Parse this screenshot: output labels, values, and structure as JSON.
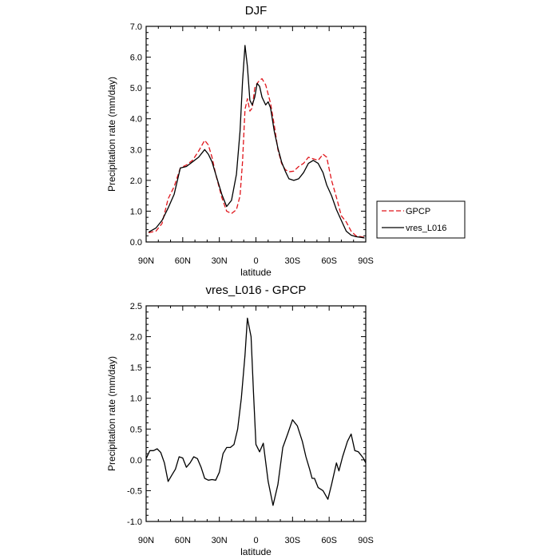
{
  "chart_data": [
    {
      "type": "line",
      "title": "DJF",
      "xlabel": "latitude",
      "ylabel": "Precipitation rate (mm/day)",
      "xlim": [
        -90,
        90
      ],
      "ylim": [
        0,
        7
      ],
      "x_ticks": [
        {
          "value": -90,
          "label": "90N"
        },
        {
          "value": -60,
          "label": "60N"
        },
        {
          "value": -30,
          "label": "30N"
        },
        {
          "value": 0,
          "label": "0"
        },
        {
          "value": 30,
          "label": "30S"
        },
        {
          "value": 60,
          "label": "60S"
        },
        {
          "value": 90,
          "label": "90S"
        }
      ],
      "y_ticks": [
        {
          "value": 0,
          "label": "0.0"
        },
        {
          "value": 1,
          "label": "1.0"
        },
        {
          "value": 2,
          "label": "2.0"
        },
        {
          "value": 3,
          "label": "3.0"
        },
        {
          "value": 4,
          "label": "4.0"
        },
        {
          "value": 5,
          "label": "5.0"
        },
        {
          "value": 6,
          "label": "6.0"
        },
        {
          "value": 7,
          "label": "7.0"
        }
      ],
      "legend": {
        "placement": "right-outside"
      },
      "series": [
        {
          "name": "GPCP",
          "color": "#e0151b",
          "dash": true,
          "x": [
            -88,
            -82,
            -77,
            -72,
            -67,
            -62,
            -57,
            -52,
            -47,
            -42,
            -39,
            -36,
            -33,
            -28,
            -24,
            -20,
            -16,
            -13,
            -11,
            -9,
            -7,
            -5,
            -3,
            -1,
            1,
            3,
            5,
            8,
            10,
            12,
            15,
            18,
            21,
            24,
            27,
            31,
            35,
            39,
            43,
            47,
            51,
            55,
            58,
            62,
            66,
            70,
            74,
            78,
            82,
            86,
            89
          ],
          "values": [
            0.3,
            0.35,
            0.6,
            1.4,
            1.8,
            2.4,
            2.5,
            2.65,
            2.95,
            3.3,
            3.15,
            2.75,
            2.2,
            1.45,
            1.0,
            0.92,
            1.05,
            1.5,
            2.6,
            4.3,
            4.65,
            4.25,
            4.35,
            5.0,
            5.15,
            5.25,
            5.3,
            5.1,
            4.8,
            4.5,
            3.8,
            3.0,
            2.55,
            2.35,
            2.28,
            2.3,
            2.45,
            2.55,
            2.75,
            2.7,
            2.65,
            2.85,
            2.75,
            2.0,
            1.45,
            0.85,
            0.65,
            0.35,
            0.2,
            0.17,
            0.15
          ]
        },
        {
          "name": "vres_L016",
          "color": "#000000",
          "dash": false,
          "x": [
            -88,
            -82,
            -77,
            -72,
            -67,
            -62,
            -57,
            -52,
            -47,
            -42,
            -39,
            -36,
            -33,
            -28,
            -24,
            -20,
            -16,
            -13,
            -11,
            -9,
            -7,
            -5,
            -3,
            -1,
            1,
            3,
            5,
            8,
            10,
            12,
            15,
            18,
            21,
            24,
            27,
            31,
            35,
            39,
            43,
            47,
            51,
            55,
            58,
            62,
            66,
            70,
            74,
            78,
            82,
            86,
            89
          ],
          "values": [
            0.32,
            0.45,
            0.7,
            1.1,
            1.55,
            2.4,
            2.45,
            2.6,
            2.75,
            3.0,
            2.85,
            2.6,
            2.2,
            1.55,
            1.15,
            1.35,
            2.2,
            3.6,
            5.2,
            6.38,
            5.7,
            4.6,
            4.45,
            4.7,
            5.15,
            5.05,
            4.7,
            4.45,
            4.55,
            4.35,
            3.6,
            3.05,
            2.6,
            2.3,
            2.05,
            2.0,
            2.05,
            2.25,
            2.55,
            2.65,
            2.55,
            2.25,
            1.85,
            1.5,
            1.05,
            0.7,
            0.35,
            0.22,
            0.17,
            0.15,
            0.13
          ]
        }
      ]
    },
    {
      "type": "line",
      "title": "vres_L016 - GPCP",
      "xlabel": "latitude",
      "ylabel": "Precipitation rate (mm/day)",
      "xlim": [
        -90,
        90
      ],
      "ylim": [
        -1,
        2.5
      ],
      "x_ticks": [
        {
          "value": -90,
          "label": "90N"
        },
        {
          "value": -60,
          "label": "60N"
        },
        {
          "value": -30,
          "label": "30N"
        },
        {
          "value": 0,
          "label": "0"
        },
        {
          "value": 30,
          "label": "30S"
        },
        {
          "value": 60,
          "label": "60S"
        },
        {
          "value": 90,
          "label": "90S"
        }
      ],
      "y_ticks": [
        {
          "value": -1,
          "label": "-1.0"
        },
        {
          "value": -0.5,
          "label": "-0.5"
        },
        {
          "value": 0,
          "label": "0.0"
        },
        {
          "value": 0.5,
          "label": "0.5"
        },
        {
          "value": 1,
          "label": "1.0"
        },
        {
          "value": 1.5,
          "label": "1.5"
        },
        {
          "value": 2,
          "label": "2.0"
        },
        {
          "value": 2.5,
          "label": "2.5"
        }
      ],
      "series": [
        {
          "name": "vres_L016 - GPCP",
          "color": "#000000",
          "dash": false,
          "x": [
            -90,
            -87,
            -84,
            -81,
            -78,
            -75,
            -72,
            -69,
            -66,
            -63,
            -60,
            -57,
            -54,
            -51,
            -48,
            -45,
            -42,
            -39,
            -36,
            -33,
            -30,
            -27,
            -24,
            -21,
            -18,
            -15,
            -12,
            -9,
            -7,
            -4,
            -2,
            0,
            3,
            6,
            10,
            14,
            18,
            22,
            26,
            30,
            34,
            38,
            41,
            44,
            46,
            48,
            51,
            55,
            59,
            62,
            66,
            68,
            71,
            75,
            78,
            81,
            84,
            88,
            90
          ],
          "values": [
            0.02,
            0.15,
            0.15,
            0.18,
            0.12,
            -0.05,
            -0.35,
            -0.25,
            -0.15,
            0.05,
            0.03,
            -0.12,
            -0.05,
            0.05,
            0.02,
            -0.12,
            -0.3,
            -0.33,
            -0.32,
            -0.33,
            -0.2,
            0.1,
            0.2,
            0.2,
            0.25,
            0.5,
            1.0,
            1.7,
            2.3,
            2.0,
            1.1,
            0.25,
            0.13,
            0.27,
            -0.35,
            -0.74,
            -0.4,
            0.2,
            0.42,
            0.65,
            0.55,
            0.3,
            0.05,
            -0.15,
            -0.3,
            -0.3,
            -0.45,
            -0.5,
            -0.64,
            -0.4,
            -0.05,
            -0.18,
            0.05,
            0.3,
            0.42,
            0.15,
            0.13,
            0.03,
            -0.05
          ]
        }
      ]
    }
  ]
}
